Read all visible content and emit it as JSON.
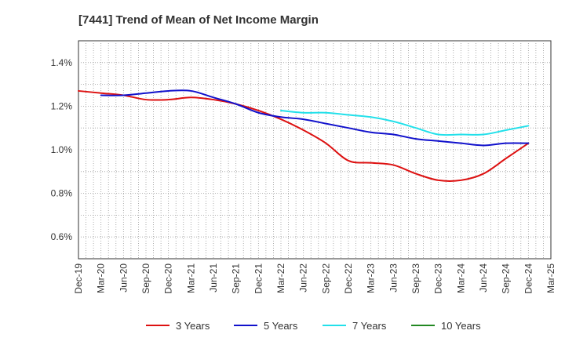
{
  "chart_data": {
    "type": "line",
    "title": "[7441]  Trend of Mean of Net Income Margin",
    "xlabel": "",
    "ylabel": "",
    "ylim": [
      0.5,
      1.5
    ],
    "grid": true,
    "legend_position": "bottom",
    "x_ticks": [
      "Dec-19",
      "Mar-20",
      "Jun-20",
      "Sep-20",
      "Dec-20",
      "Mar-21",
      "Jun-21",
      "Sep-21",
      "Dec-21",
      "Mar-22",
      "Jun-22",
      "Sep-22",
      "Dec-22",
      "Mar-23",
      "Jun-23",
      "Sep-23",
      "Dec-23",
      "Mar-24",
      "Jun-24",
      "Sep-24",
      "Dec-24",
      "Mar-25"
    ],
    "y_ticks": [
      {
        "value": 0.6,
        "label": "0.6%"
      },
      {
        "value": 0.8,
        "label": "0.8%"
      },
      {
        "value": 1.0,
        "label": "1.0%"
      },
      {
        "value": 1.2,
        "label": "1.2%"
      },
      {
        "value": 1.4,
        "label": "1.4%"
      }
    ],
    "series": [
      {
        "name": "3 Years",
        "color": "#dd1111",
        "points": [
          [
            "Dec-19",
            1.27
          ],
          [
            "Mar-20",
            1.26
          ],
          [
            "Jun-20",
            1.25
          ],
          [
            "Sep-20",
            1.23
          ],
          [
            "Dec-20",
            1.23
          ],
          [
            "Mar-21",
            1.24
          ],
          [
            "Jun-21",
            1.23
          ],
          [
            "Sep-21",
            1.21
          ],
          [
            "Dec-21",
            1.18
          ],
          [
            "Mar-22",
            1.14
          ],
          [
            "Jun-22",
            1.09
          ],
          [
            "Sep-22",
            1.03
          ],
          [
            "Dec-22",
            0.95
          ],
          [
            "Mar-23",
            0.94
          ],
          [
            "Jun-23",
            0.93
          ],
          [
            "Sep-23",
            0.89
          ],
          [
            "Dec-23",
            0.86
          ],
          [
            "Mar-24",
            0.86
          ],
          [
            "Jun-24",
            0.89
          ],
          [
            "Sep-24",
            0.96
          ],
          [
            "Dec-24",
            1.03
          ]
        ]
      },
      {
        "name": "5 Years",
        "color": "#1111cc",
        "points": [
          [
            "Mar-20",
            1.25
          ],
          [
            "Jun-20",
            1.25
          ],
          [
            "Sep-20",
            1.26
          ],
          [
            "Dec-20",
            1.27
          ],
          [
            "Mar-21",
            1.27
          ],
          [
            "Jun-21",
            1.24
          ],
          [
            "Sep-21",
            1.21
          ],
          [
            "Dec-21",
            1.17
          ],
          [
            "Mar-22",
            1.15
          ],
          [
            "Jun-22",
            1.14
          ],
          [
            "Sep-22",
            1.12
          ],
          [
            "Dec-22",
            1.1
          ],
          [
            "Mar-23",
            1.08
          ],
          [
            "Jun-23",
            1.07
          ],
          [
            "Sep-23",
            1.05
          ],
          [
            "Dec-23",
            1.04
          ],
          [
            "Mar-24",
            1.03
          ],
          [
            "Jun-24",
            1.02
          ],
          [
            "Sep-24",
            1.03
          ],
          [
            "Dec-24",
            1.03
          ]
        ]
      },
      {
        "name": "7 Years",
        "color": "#22e0ea",
        "points": [
          [
            "Mar-22",
            1.18
          ],
          [
            "Jun-22",
            1.17
          ],
          [
            "Sep-22",
            1.17
          ],
          [
            "Dec-22",
            1.16
          ],
          [
            "Mar-23",
            1.15
          ],
          [
            "Jun-23",
            1.13
          ],
          [
            "Sep-23",
            1.1
          ],
          [
            "Dec-23",
            1.07
          ],
          [
            "Mar-24",
            1.07
          ],
          [
            "Jun-24",
            1.07
          ],
          [
            "Sep-24",
            1.09
          ],
          [
            "Dec-24",
            1.11
          ]
        ]
      },
      {
        "name": "10 Years",
        "color": "#228822",
        "points": []
      }
    ]
  }
}
